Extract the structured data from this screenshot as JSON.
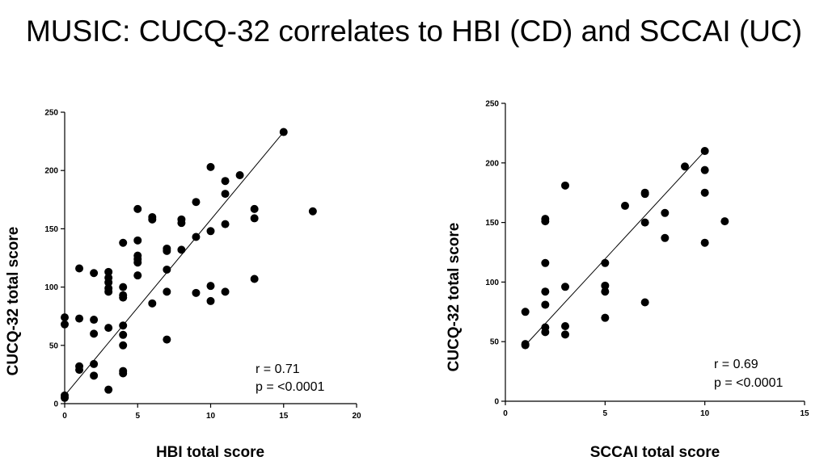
{
  "title": "MUSIC: CUCQ-32 correlates to HBI (CD) and SCCAI (UC)",
  "chart_data": [
    {
      "type": "scatter",
      "xlabel": "HBI total score",
      "ylabel": "CUCQ-32 total score",
      "xlim": [
        0,
        20
      ],
      "ylim": [
        0,
        250
      ],
      "xticks": [
        0,
        5,
        10,
        15,
        20
      ],
      "yticks": [
        0,
        50,
        100,
        150,
        200,
        250
      ],
      "grid": false,
      "annotations": [
        "r = 0.71",
        "p = <0.0001"
      ],
      "regression_line": [
        [
          0,
          7
        ],
        [
          15,
          233
        ]
      ],
      "points": [
        [
          0,
          74
        ],
        [
          0,
          68
        ],
        [
          0,
          7
        ],
        [
          0,
          5
        ],
        [
          1,
          116
        ],
        [
          1,
          73
        ],
        [
          1,
          32
        ],
        [
          1,
          29
        ],
        [
          2,
          112
        ],
        [
          2,
          72
        ],
        [
          2,
          60
        ],
        [
          2,
          34
        ],
        [
          2,
          24
        ],
        [
          3,
          113
        ],
        [
          3,
          108
        ],
        [
          3,
          104
        ],
        [
          3,
          99
        ],
        [
          3,
          96
        ],
        [
          3,
          65
        ],
        [
          3,
          12
        ],
        [
          4,
          138
        ],
        [
          4,
          100
        ],
        [
          4,
          93
        ],
        [
          4,
          91
        ],
        [
          4,
          67
        ],
        [
          4,
          59
        ],
        [
          4,
          50
        ],
        [
          4,
          28
        ],
        [
          4,
          26
        ],
        [
          5,
          167
        ],
        [
          5,
          140
        ],
        [
          5,
          127
        ],
        [
          5,
          124
        ],
        [
          5,
          121
        ],
        [
          5,
          110
        ],
        [
          6,
          160
        ],
        [
          6,
          158
        ],
        [
          6,
          86
        ],
        [
          7,
          133
        ],
        [
          7,
          131
        ],
        [
          7,
          115
        ],
        [
          7,
          96
        ],
        [
          7,
          55
        ],
        [
          8,
          158
        ],
        [
          8,
          155
        ],
        [
          8,
          132
        ],
        [
          9,
          173
        ],
        [
          9,
          143
        ],
        [
          9,
          95
        ],
        [
          10,
          203
        ],
        [
          10,
          148
        ],
        [
          10,
          101
        ],
        [
          10,
          88
        ],
        [
          11,
          191
        ],
        [
          11,
          180
        ],
        [
          11,
          154
        ],
        [
          11,
          96
        ],
        [
          12,
          196
        ],
        [
          13,
          167
        ],
        [
          13,
          159
        ],
        [
          13,
          107
        ],
        [
          15,
          233
        ],
        [
          17,
          165
        ]
      ]
    },
    {
      "type": "scatter",
      "xlabel": "SCCAI total score",
      "ylabel": "CUCQ-32 total score",
      "xlim": [
        0,
        15
      ],
      "ylim": [
        0,
        250
      ],
      "xticks": [
        0,
        5,
        10,
        15
      ],
      "yticks": [
        0,
        50,
        100,
        150,
        200,
        250
      ],
      "grid": false,
      "annotations": [
        "r = 0.69",
        "p = <0.0001"
      ],
      "regression_line": [
        [
          1,
          47
        ],
        [
          10,
          210
        ]
      ],
      "points": [
        [
          1,
          75
        ],
        [
          1,
          48
        ],
        [
          1,
          47
        ],
        [
          2,
          153
        ],
        [
          2,
          151
        ],
        [
          2,
          116
        ],
        [
          2,
          92
        ],
        [
          2,
          81
        ],
        [
          2,
          62
        ],
        [
          2,
          58
        ],
        [
          3,
          181
        ],
        [
          3,
          96
        ],
        [
          3,
          63
        ],
        [
          3,
          56
        ],
        [
          5,
          116
        ],
        [
          5,
          97
        ],
        [
          5,
          92
        ],
        [
          5,
          70
        ],
        [
          6,
          164
        ],
        [
          7,
          175
        ],
        [
          7,
          174
        ],
        [
          7,
          150
        ],
        [
          7,
          83
        ],
        [
          8,
          158
        ],
        [
          8,
          137
        ],
        [
          9,
          197
        ],
        [
          10,
          210
        ],
        [
          10,
          194
        ],
        [
          10,
          175
        ],
        [
          10,
          133
        ],
        [
          11,
          151
        ]
      ]
    }
  ]
}
